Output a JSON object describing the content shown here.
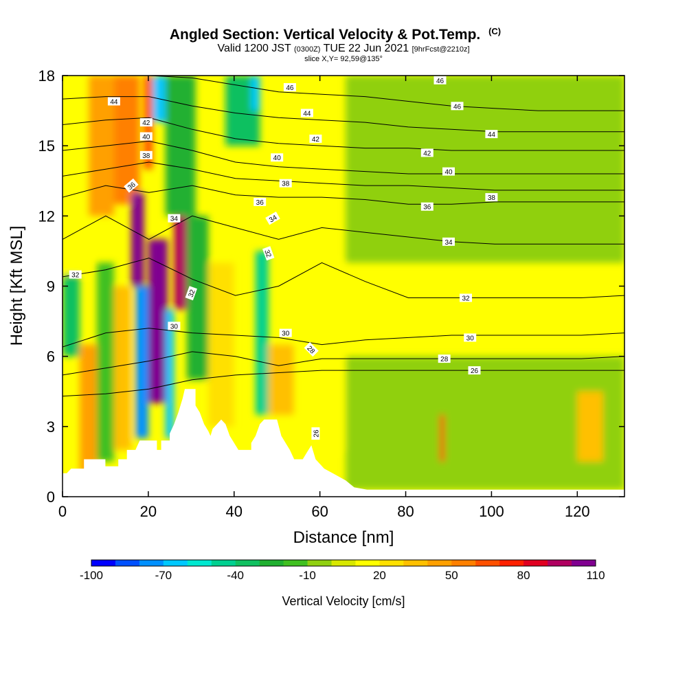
{
  "chart_data": {
    "type": "heatmap",
    "title": "Angled Section: Vertical Velocity & Pot.Temp.",
    "title_mark": "(C)",
    "subtitle": {
      "valid": "Valid 1200 JST",
      "zulu": "(0300Z)",
      "date": "TUE 22 Jun 2021",
      "fcst": "[9hrFcst@2210z]"
    },
    "slice": "slice X,Y= 92,59@135°",
    "xlabel": "Distance [nm]",
    "ylabel": "Height [Kft MSL]",
    "xlim": [
      0,
      131
    ],
    "ylim": [
      0,
      18
    ],
    "x_ticks": [
      "0",
      "20",
      "40",
      "60",
      "80",
      "100",
      "120"
    ],
    "y_ticks": [
      "0",
      "3",
      "6",
      "9",
      "12",
      "15",
      "18"
    ],
    "colorbar": {
      "label": "Vertical Velocity [cm/s]",
      "tick_labels": [
        "-100",
        "-70",
        "-40",
        "-10",
        "20",
        "50",
        "80",
        "110"
      ],
      "levels": [
        -100,
        -90,
        -80,
        -70,
        -60,
        -50,
        -40,
        -30,
        -20,
        -10,
        0,
        10,
        20,
        30,
        40,
        50,
        60,
        70,
        80,
        90,
        100,
        110
      ],
      "colors": [
        "#0000ff",
        "#0050ff",
        "#0090ff",
        "#00c8ff",
        "#00e8d0",
        "#00d090",
        "#10c060",
        "#20b030",
        "#40c020",
        "#90d010",
        "#d8e800",
        "#ffff00",
        "#ffe000",
        "#ffc000",
        "#ffa000",
        "#ff8000",
        "#ff5000",
        "#ff2000",
        "#e00020",
        "#b00060",
        "#800090"
      ]
    },
    "terrain": [
      [
        0,
        1
      ],
      [
        1,
        1
      ],
      [
        2,
        1.2
      ],
      [
        5,
        1.2
      ],
      [
        5,
        1.6
      ],
      [
        10,
        1.6
      ],
      [
        10,
        1.3
      ],
      [
        13,
        1.3
      ],
      [
        13,
        1.6
      ],
      [
        15,
        1.6
      ],
      [
        15,
        2.0
      ],
      [
        17,
        2.0
      ],
      [
        18,
        2.4
      ],
      [
        22,
        2.4
      ],
      [
        22,
        2.0
      ],
      [
        23,
        2.0
      ],
      [
        23,
        2.4
      ],
      [
        25,
        2.4
      ],
      [
        25,
        2.7
      ],
      [
        26,
        3.1
      ],
      [
        27,
        3.6
      ],
      [
        28,
        4.2
      ],
      [
        28.5,
        4.6
      ],
      [
        31,
        4.6
      ],
      [
        31,
        3.9
      ],
      [
        32,
        3.6
      ],
      [
        33,
        3.1
      ],
      [
        34,
        2.8
      ],
      [
        34.5,
        2.6
      ],
      [
        35,
        2.9
      ],
      [
        36,
        3.1
      ],
      [
        37,
        3.3
      ],
      [
        38,
        3.1
      ],
      [
        39,
        2.6
      ],
      [
        40,
        2.3
      ],
      [
        41,
        2.0
      ],
      [
        44,
        2.0
      ],
      [
        44,
        2.3
      ],
      [
        45,
        2.6
      ],
      [
        46,
        3.1
      ],
      [
        47,
        3.3
      ],
      [
        50,
        3.3
      ],
      [
        51,
        2.6
      ],
      [
        52,
        2.3
      ],
      [
        53,
        2.0
      ],
      [
        54,
        1.6
      ],
      [
        56,
        1.6
      ],
      [
        57,
        1.9
      ],
      [
        58,
        2.2
      ],
      [
        59,
        1.6
      ],
      [
        61,
        1.2
      ],
      [
        63,
        1.0
      ],
      [
        66,
        0.7
      ],
      [
        68,
        0.4
      ],
      [
        71,
        0.3
      ],
      [
        131,
        0.3
      ]
    ],
    "theta_contours": [
      {
        "label": "26",
        "y": [
          4.3,
          4.4,
          4.6,
          5.0,
          5.2,
          5.3,
          5.4,
          5.4,
          5.4,
          5.4,
          5.4,
          5.4,
          5.4,
          5.4
        ]
      },
      {
        "label": "28",
        "y": [
          5.2,
          5.5,
          5.8,
          6.2,
          6.0,
          5.6,
          5.9,
          5.9,
          5.9,
          5.9,
          5.9,
          5.9,
          5.9,
          6.0
        ]
      },
      {
        "label": "30",
        "y": [
          6.4,
          7.0,
          7.2,
          7.0,
          6.9,
          6.8,
          6.5,
          6.7,
          6.8,
          6.9,
          6.9,
          6.9,
          6.9,
          7.0
        ]
      },
      {
        "label": "32",
        "y": [
          9.4,
          9.7,
          10.2,
          9.3,
          8.6,
          9.0,
          10.0,
          9.2,
          8.5,
          8.5,
          8.5,
          8.5,
          8.5,
          8.6
        ]
      },
      {
        "label": "34",
        "y": [
          11.0,
          12.0,
          11.0,
          12.0,
          11.5,
          11.0,
          11.5,
          11.3,
          11.1,
          10.9,
          10.8,
          10.8,
          10.8,
          10.8
        ]
      },
      {
        "label": "36",
        "y": [
          12.8,
          13.3,
          13.0,
          13.3,
          12.9,
          12.8,
          12.8,
          12.7,
          12.5,
          12.5,
          12.6,
          12.6,
          12.6,
          12.6
        ]
      },
      {
        "label": "38",
        "y": [
          13.7,
          14.0,
          14.3,
          14.0,
          13.6,
          13.5,
          13.4,
          13.3,
          13.3,
          13.2,
          13.1,
          13.1,
          13.1,
          13.1
        ]
      },
      {
        "label": "40",
        "y": [
          14.8,
          15.0,
          15.2,
          14.8,
          14.3,
          14.1,
          14.0,
          13.9,
          13.8,
          13.8,
          13.8,
          13.8,
          13.8,
          13.8
        ]
      },
      {
        "label": "42",
        "y": [
          15.9,
          16.1,
          16.2,
          15.7,
          15.3,
          15.1,
          15.0,
          14.9,
          14.9,
          14.8,
          14.8,
          14.8,
          14.8,
          14.8
        ]
      },
      {
        "label": "44",
        "y": [
          17.0,
          17.1,
          17.1,
          16.7,
          16.4,
          16.2,
          16.1,
          16.0,
          15.8,
          15.7,
          15.6,
          15.6,
          15.6,
          15.6
        ]
      },
      {
        "label": "46",
        "y": [
          18.0,
          18.0,
          18.0,
          17.9,
          17.6,
          17.3,
          17.2,
          17.1,
          16.9,
          16.7,
          16.6,
          16.5,
          16.5,
          16.5
        ]
      }
    ],
    "theta_label_marks": [
      {
        "t": "44",
        "x": 12,
        "y": 16.9,
        "a": 0
      },
      {
        "t": "42",
        "x": 19.5,
        "y": 16.0,
        "a": 0
      },
      {
        "t": "40",
        "x": 19.5,
        "y": 15.4,
        "a": 0
      },
      {
        "t": "38",
        "x": 19.5,
        "y": 14.6,
        "a": 0
      },
      {
        "t": "36",
        "x": 16,
        "y": 13.3,
        "a": -40
      },
      {
        "t": "34",
        "x": 26,
        "y": 11.9,
        "a": 0
      },
      {
        "t": "32",
        "x": 3,
        "y": 9.5,
        "a": 0
      },
      {
        "t": "32",
        "x": 30,
        "y": 8.7,
        "a": -70
      },
      {
        "t": "30",
        "x": 26,
        "y": 7.3,
        "a": 0
      },
      {
        "t": "46",
        "x": 53,
        "y": 17.5,
        "a": 0
      },
      {
        "t": "44",
        "x": 57,
        "y": 16.4,
        "a": 0
      },
      {
        "t": "42",
        "x": 59,
        "y": 15.3,
        "a": 0
      },
      {
        "t": "40",
        "x": 50,
        "y": 14.5,
        "a": 0
      },
      {
        "t": "38",
        "x": 52,
        "y": 13.4,
        "a": 0
      },
      {
        "t": "36",
        "x": 46,
        "y": 12.6,
        "a": 0
      },
      {
        "t": "34",
        "x": 49,
        "y": 11.9,
        "a": -30
      },
      {
        "t": "32",
        "x": 48,
        "y": 10.4,
        "a": 70
      },
      {
        "t": "30",
        "x": 52,
        "y": 7.0,
        "a": 0
      },
      {
        "t": "28",
        "x": 58,
        "y": 6.3,
        "a": 45
      },
      {
        "t": "26",
        "x": 59,
        "y": 2.7,
        "a": -90
      },
      {
        "t": "46",
        "x": 88,
        "y": 17.8,
        "a": 0
      },
      {
        "t": "46",
        "x": 92,
        "y": 16.7,
        "a": 0
      },
      {
        "t": "44",
        "x": 100,
        "y": 15.5,
        "a": 0
      },
      {
        "t": "42",
        "x": 85,
        "y": 14.7,
        "a": 0
      },
      {
        "t": "40",
        "x": 90,
        "y": 13.9,
        "a": 0
      },
      {
        "t": "38",
        "x": 100,
        "y": 12.8,
        "a": 0
      },
      {
        "t": "36",
        "x": 85,
        "y": 12.4,
        "a": 0
      },
      {
        "t": "34",
        "x": 90,
        "y": 10.9,
        "a": 0
      },
      {
        "t": "32",
        "x": 94,
        "y": 8.5,
        "a": 0
      },
      {
        "t": "30",
        "x": 95,
        "y": 6.8,
        "a": 0
      },
      {
        "t": "28",
        "x": 89,
        "y": 5.9,
        "a": 0
      },
      {
        "t": "26",
        "x": 96,
        "y": 5.4,
        "a": 0
      }
    ],
    "vertical_velocity_cells": [
      {
        "x0": 0,
        "x1": 6,
        "y0": 9.5,
        "y1": 18,
        "v": 10
      },
      {
        "x0": 6,
        "x1": 12,
        "y0": 12,
        "y1": 18,
        "v": 40
      },
      {
        "x0": 12,
        "x1": 18,
        "y0": 12.5,
        "y1": 18,
        "v": 50
      },
      {
        "x0": 0,
        "x1": 4,
        "y0": 6,
        "y1": 9.5,
        "v": -40
      },
      {
        "x0": 4,
        "x1": 8,
        "y0": 1,
        "y1": 6.5,
        "v": 40
      },
      {
        "x0": 8,
        "x1": 12,
        "y0": 1.5,
        "y1": 10,
        "v": -20
      },
      {
        "x0": 12,
        "x1": 16,
        "y0": 2,
        "y1": 9,
        "v": 30
      },
      {
        "x0": 16,
        "x1": 19,
        "y0": 9,
        "y1": 13,
        "v": 100
      },
      {
        "x0": 17,
        "x1": 20,
        "y0": 2.5,
        "y1": 9,
        "v": -80
      },
      {
        "x0": 19,
        "x1": 21,
        "y0": 14,
        "y1": 18,
        "v": 60
      },
      {
        "x0": 21,
        "x1": 24,
        "y0": 16,
        "y1": 18,
        "v": -70
      },
      {
        "x0": 20,
        "x1": 24.5,
        "y0": 4,
        "y1": 11,
        "v": 110
      },
      {
        "x0": 24,
        "x1": 26,
        "y0": 2.5,
        "y1": 8,
        "v": -70
      },
      {
        "x0": 26,
        "x1": 29,
        "y0": 8,
        "y1": 12,
        "v": 90
      },
      {
        "x0": 24,
        "x1": 31,
        "y0": 12,
        "y1": 18,
        "v": -30
      },
      {
        "x0": 29,
        "x1": 34,
        "y0": 5,
        "y1": 12,
        "v": -30
      },
      {
        "x0": 34,
        "x1": 40,
        "y0": 3,
        "y1": 10,
        "v": 20
      },
      {
        "x0": 38,
        "x1": 46,
        "y0": 15,
        "y1": 18,
        "v": -40
      },
      {
        "x0": 44,
        "x1": 46,
        "y0": 16.5,
        "y1": 18,
        "v": -70
      },
      {
        "x0": 45,
        "x1": 48,
        "y0": 3.5,
        "y1": 10.5,
        "v": -50
      },
      {
        "x0": 48,
        "x1": 54,
        "y0": 3.5,
        "y1": 6.5,
        "v": 30
      },
      {
        "x0": 54,
        "x1": 66,
        "y0": 2,
        "y1": 10,
        "v": 10
      },
      {
        "x0": 66,
        "x1": 131,
        "y0": 10,
        "y1": 18,
        "v": -10
      },
      {
        "x0": 66,
        "x1": 131,
        "y0": 0.3,
        "y1": 6,
        "v": -10
      },
      {
        "x0": 88,
        "x1": 89,
        "y0": 1.5,
        "y1": 3.5,
        "v": 70
      },
      {
        "x0": 120,
        "x1": 126,
        "y0": 1.5,
        "y1": 4.5,
        "v": 30
      }
    ]
  }
}
